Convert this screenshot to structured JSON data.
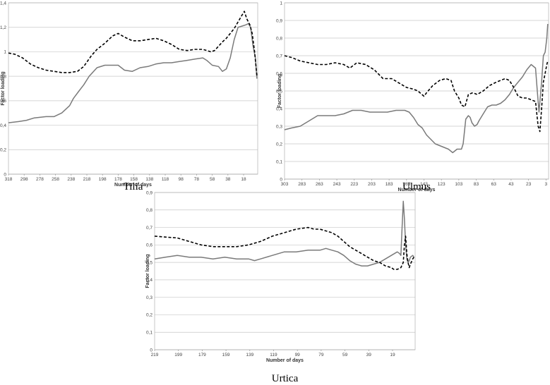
{
  "chart_data": [
    {
      "type": "line",
      "caption": "Tilia",
      "xlabel": "Number of days",
      "ylabel": "Factor loading",
      "xlim": [
        318,
        0
      ],
      "ylim": [
        0,
        1.4
      ],
      "y_ticks": [
        "0",
        "0,2",
        "0,4",
        "0,6",
        "0,8",
        "1",
        "1,2",
        "1,4"
      ],
      "x_ticks": [
        "318",
        "298",
        "278",
        "258",
        "238",
        "218",
        "198",
        "178",
        "158",
        "138",
        "118",
        "98",
        "78",
        "58",
        "38",
        "18"
      ],
      "grid": "horizontal",
      "series": [
        {
          "style": "solid",
          "color": "#7a7a7a",
          "x": [
            318,
            305,
            295,
            285,
            270,
            260,
            250,
            240,
            235,
            228,
            222,
            215,
            205,
            195,
            185,
            178,
            170,
            160,
            150,
            140,
            130,
            120,
            110,
            100,
            90,
            80,
            70,
            65,
            58,
            50,
            45,
            40,
            35,
            30,
            25,
            20,
            15,
            12,
            9,
            6,
            3,
            1
          ],
          "y": [
            0.42,
            0.43,
            0.44,
            0.46,
            0.47,
            0.47,
            0.5,
            0.56,
            0.62,
            0.68,
            0.73,
            0.8,
            0.87,
            0.89,
            0.89,
            0.89,
            0.85,
            0.84,
            0.87,
            0.88,
            0.9,
            0.91,
            0.91,
            0.92,
            0.93,
            0.94,
            0.95,
            0.93,
            0.89,
            0.88,
            0.84,
            0.86,
            0.95,
            1.1,
            1.2,
            1.21,
            1.22,
            1.23,
            1.2,
            1.05,
            0.95,
            0.78
          ]
        },
        {
          "style": "dashed",
          "color": "#000000",
          "x": [
            318,
            310,
            300,
            290,
            280,
            270,
            260,
            250,
            240,
            230,
            222,
            212,
            205,
            195,
            185,
            178,
            170,
            160,
            150,
            140,
            130,
            120,
            110,
            100,
            90,
            80,
            70,
            60,
            55,
            45,
            40,
            30,
            20,
            17,
            14,
            10,
            7,
            4,
            1
          ],
          "y": [
            0.99,
            0.98,
            0.95,
            0.9,
            0.87,
            0.85,
            0.84,
            0.83,
            0.83,
            0.84,
            0.88,
            0.97,
            1.02,
            1.07,
            1.13,
            1.15,
            1.12,
            1.09,
            1.09,
            1.1,
            1.11,
            1.09,
            1.06,
            1.02,
            1.01,
            1.02,
            1.02,
            1.0,
            1.01,
            1.08,
            1.11,
            1.19,
            1.3,
            1.33,
            1.27,
            1.22,
            1.15,
            1.0,
            0.8
          ]
        }
      ]
    },
    {
      "type": "line",
      "caption": "Ulmus",
      "xlabel": "Number of days",
      "ylabel": "Factor loading",
      "xlim": [
        303,
        0
      ],
      "ylim": [
        0,
        1
      ],
      "y_ticks": [
        "0",
        "0,1",
        "0,2",
        "0,3",
        "0,4",
        "0,5",
        "0,6",
        "0,7",
        "0,8",
        "0,9",
        "1"
      ],
      "x_ticks": [
        "303",
        "283",
        "263",
        "243",
        "223",
        "203",
        "183",
        "163",
        "143",
        "123",
        "103",
        "83",
        "63",
        "43",
        "23",
        "3"
      ],
      "grid": "horizontal",
      "series": [
        {
          "style": "solid",
          "color": "#7a7a7a",
          "x": [
            303,
            295,
            285,
            275,
            265,
            255,
            245,
            235,
            225,
            215,
            205,
            195,
            185,
            175,
            165,
            160,
            155,
            150,
            145,
            140,
            130,
            125,
            120,
            115,
            110,
            105,
            100,
            98,
            95,
            92,
            90,
            88,
            85,
            82,
            80,
            75,
            70,
            65,
            60,
            55,
            50,
            45,
            40,
            35,
            30,
            25,
            20,
            15,
            13,
            11,
            8,
            6,
            4,
            2,
            1
          ],
          "y": [
            0.28,
            0.29,
            0.3,
            0.33,
            0.36,
            0.36,
            0.36,
            0.37,
            0.39,
            0.39,
            0.38,
            0.38,
            0.38,
            0.39,
            0.39,
            0.38,
            0.35,
            0.31,
            0.29,
            0.25,
            0.2,
            0.19,
            0.18,
            0.17,
            0.15,
            0.17,
            0.17,
            0.2,
            0.34,
            0.36,
            0.35,
            0.32,
            0.3,
            0.31,
            0.33,
            0.37,
            0.41,
            0.42,
            0.42,
            0.43,
            0.45,
            0.48,
            0.52,
            0.55,
            0.58,
            0.62,
            0.65,
            0.63,
            0.5,
            0.38,
            0.55,
            0.7,
            0.72,
            0.8,
            0.88
          ]
        },
        {
          "style": "dashed",
          "color": "#000000",
          "x": [
            303,
            295,
            285,
            275,
            265,
            255,
            245,
            235,
            228,
            220,
            210,
            200,
            190,
            180,
            170,
            163,
            155,
            150,
            143,
            140,
            133,
            125,
            118,
            112,
            108,
            103,
            100,
            96,
            92,
            87,
            82,
            75,
            68,
            60,
            55,
            50,
            45,
            40,
            35,
            30,
            25,
            20,
            15,
            12,
            10,
            8,
            6,
            4,
            2,
            1
          ],
          "y": [
            0.7,
            0.69,
            0.67,
            0.66,
            0.65,
            0.65,
            0.66,
            0.65,
            0.63,
            0.66,
            0.65,
            0.62,
            0.57,
            0.57,
            0.54,
            0.52,
            0.51,
            0.5,
            0.47,
            0.49,
            0.53,
            0.56,
            0.57,
            0.56,
            0.5,
            0.46,
            0.42,
            0.41,
            0.48,
            0.49,
            0.48,
            0.5,
            0.53,
            0.55,
            0.56,
            0.57,
            0.56,
            0.52,
            0.47,
            0.46,
            0.46,
            0.45,
            0.44,
            0.3,
            0.27,
            0.4,
            0.55,
            0.6,
            0.65,
            0.67
          ]
        }
      ]
    },
    {
      "type": "line",
      "caption": "Urtica",
      "xlabel": "Number of days",
      "ylabel": "Factor loading",
      "xlim": [
        219,
        0
      ],
      "ylim": [
        0,
        0.9
      ],
      "y_ticks": [
        "0",
        "0,1",
        "0,2",
        "0,3",
        "0,4",
        "0,5",
        "0,6",
        "0,7",
        "0,8",
        "0,9"
      ],
      "x_ticks": [
        "219",
        "199",
        "179",
        "159",
        "139",
        "119",
        "99",
        "79",
        "59",
        "39",
        "19"
      ],
      "grid": "horizontal",
      "series": [
        {
          "style": "solid",
          "color": "#7a7a7a",
          "x": [
            219,
            210,
            200,
            190,
            180,
            170,
            160,
            150,
            140,
            135,
            130,
            120,
            110,
            100,
            90,
            80,
            75,
            70,
            65,
            60,
            55,
            50,
            45,
            40,
            35,
            30,
            25,
            20,
            15,
            13,
            12,
            11,
            10,
            9,
            8,
            7,
            6,
            5,
            4,
            2,
            1
          ],
          "y": [
            0.52,
            0.53,
            0.54,
            0.53,
            0.53,
            0.52,
            0.53,
            0.52,
            0.52,
            0.51,
            0.52,
            0.54,
            0.56,
            0.56,
            0.57,
            0.57,
            0.58,
            0.57,
            0.56,
            0.54,
            0.51,
            0.49,
            0.48,
            0.48,
            0.49,
            0.5,
            0.52,
            0.54,
            0.56,
            0.55,
            0.54,
            0.7,
            0.85,
            0.75,
            0.6,
            0.52,
            0.5,
            0.51,
            0.53,
            0.54,
            0.53
          ]
        },
        {
          "style": "dashed",
          "color": "#000000",
          "x": [
            219,
            210,
            200,
            190,
            180,
            170,
            160,
            150,
            140,
            130,
            120,
            110,
            100,
            95,
            90,
            85,
            80,
            75,
            70,
            65,
            60,
            55,
            50,
            45,
            40,
            35,
            30,
            25,
            20,
            18,
            15,
            12,
            10,
            9,
            8,
            7,
            6,
            5,
            4,
            2,
            1
          ],
          "y": [
            0.65,
            0.645,
            0.64,
            0.62,
            0.6,
            0.59,
            0.59,
            0.59,
            0.6,
            0.62,
            0.65,
            0.67,
            0.69,
            0.695,
            0.7,
            0.69,
            0.69,
            0.68,
            0.67,
            0.65,
            0.62,
            0.59,
            0.57,
            0.55,
            0.53,
            0.51,
            0.5,
            0.48,
            0.47,
            0.46,
            0.46,
            0.47,
            0.5,
            0.6,
            0.65,
            0.55,
            0.5,
            0.47,
            0.49,
            0.52,
            0.53
          ]
        }
      ]
    }
  ]
}
